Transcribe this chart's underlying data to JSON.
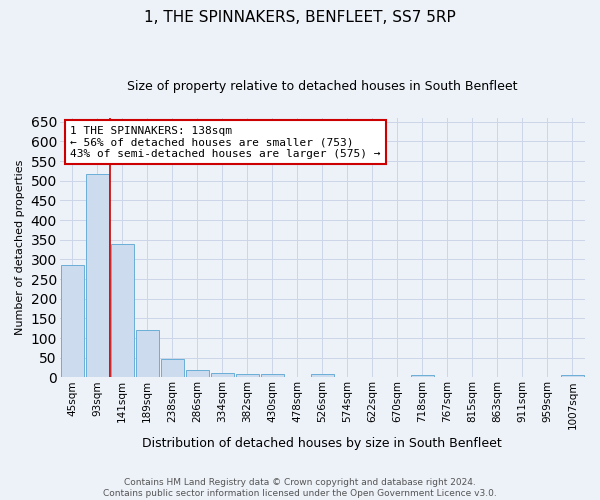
{
  "title": "1, THE SPINNAKERS, BENFLEET, SS7 5RP",
  "subtitle": "Size of property relative to detached houses in South Benfleet",
  "xlabel": "Distribution of detached houses by size in South Benfleet",
  "ylabel": "Number of detached properties",
  "footer_line1": "Contains HM Land Registry data © Crown copyright and database right 2024.",
  "footer_line2": "Contains public sector information licensed under the Open Government Licence v3.0.",
  "bin_labels": [
    "45sqm",
    "93sqm",
    "141sqm",
    "189sqm",
    "238sqm",
    "286sqm",
    "334sqm",
    "382sqm",
    "430sqm",
    "478sqm",
    "526sqm",
    "574sqm",
    "622sqm",
    "670sqm",
    "718sqm",
    "767sqm",
    "815sqm",
    "863sqm",
    "911sqm",
    "959sqm",
    "1007sqm"
  ],
  "bar_values": [
    285,
    516,
    340,
    120,
    48,
    18,
    10,
    8,
    8,
    0,
    8,
    0,
    0,
    0,
    5,
    0,
    0,
    0,
    0,
    0,
    5
  ],
  "bar_color": "#ccdcee",
  "bar_edge_color": "#6aaed6",
  "ylim": [
    0,
    660
  ],
  "yticks": [
    0,
    50,
    100,
    150,
    200,
    250,
    300,
    350,
    400,
    450,
    500,
    550,
    600,
    650
  ],
  "red_line_color": "#cc0000",
  "annotation_line1": "1 THE SPINNAKERS: 138sqm",
  "annotation_line2": "← 56% of detached houses are smaller (753)",
  "annotation_line3": "43% of semi-detached houses are larger (575) →",
  "annotation_box_color": "#ffffff",
  "annotation_box_edge_color": "#cc0000",
  "grid_color": "#ccd6e8",
  "background_color": "#edf1f8",
  "title_fontsize": 11,
  "subtitle_fontsize": 9,
  "ylabel_fontsize": 8,
  "xlabel_fontsize": 9,
  "tick_fontsize": 7.5,
  "annotation_fontsize": 8,
  "footer_fontsize": 6.5
}
